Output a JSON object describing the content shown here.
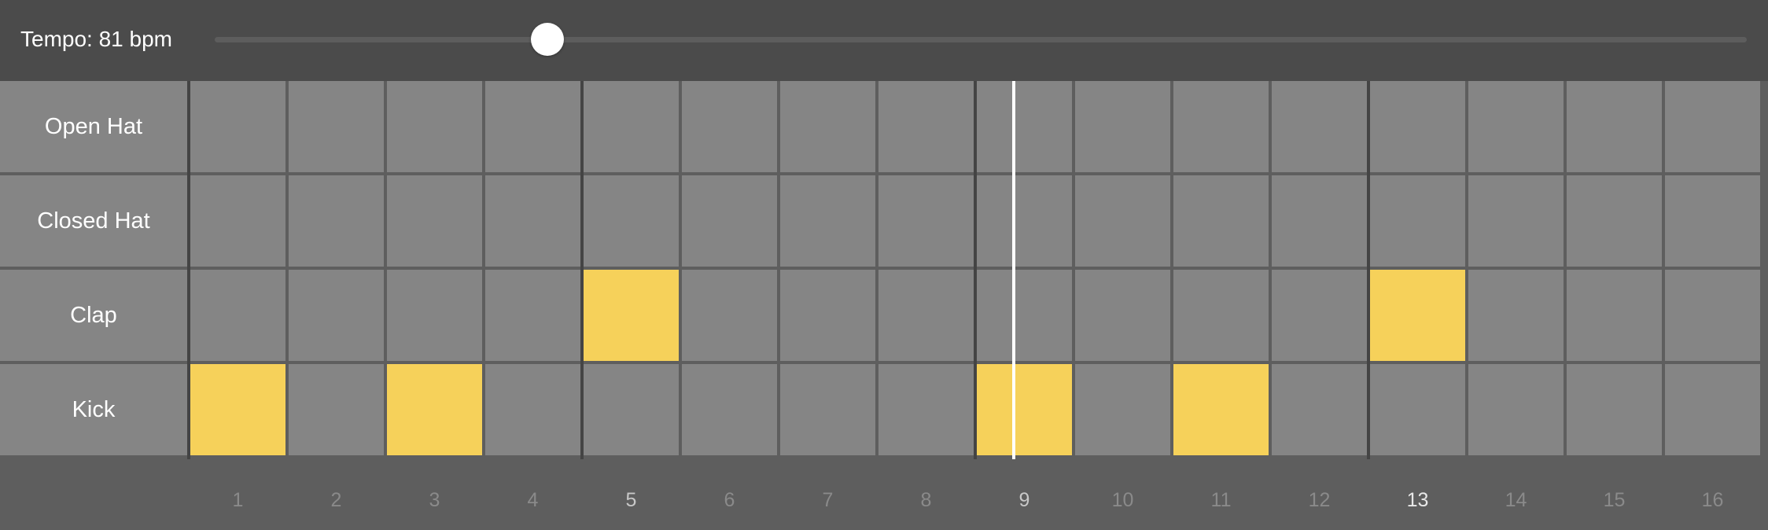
{
  "header": {
    "tempo_label": "Tempo: 81 bpm",
    "tempo_slider": {
      "min": 0,
      "max": 1,
      "value": 0.217
    }
  },
  "sequencer": {
    "rows": [
      {
        "label": "Open Hat",
        "steps": [
          0,
          0,
          0,
          0,
          0,
          0,
          0,
          0,
          0,
          0,
          0,
          0,
          0,
          0,
          0,
          0
        ]
      },
      {
        "label": "Closed Hat",
        "steps": [
          0,
          0,
          0,
          0,
          0,
          0,
          0,
          0,
          0,
          0,
          0,
          0,
          0,
          0,
          0,
          0
        ]
      },
      {
        "label": "Clap",
        "steps": [
          0,
          0,
          0,
          0,
          1,
          0,
          0,
          0,
          0,
          0,
          0,
          0,
          1,
          0,
          0,
          0
        ]
      },
      {
        "label": "Kick",
        "steps": [
          1,
          0,
          1,
          0,
          0,
          0,
          0,
          0,
          1,
          0,
          1,
          0,
          0,
          0,
          0,
          0
        ]
      }
    ],
    "step_numbers": [
      "1",
      "2",
      "3",
      "4",
      "5",
      "6",
      "7",
      "8",
      "9",
      "10",
      "11",
      "12",
      "13",
      "14",
      "15",
      "16"
    ],
    "active_colour": "#f6d15a",
    "idle_colour": "#858585"
  }
}
